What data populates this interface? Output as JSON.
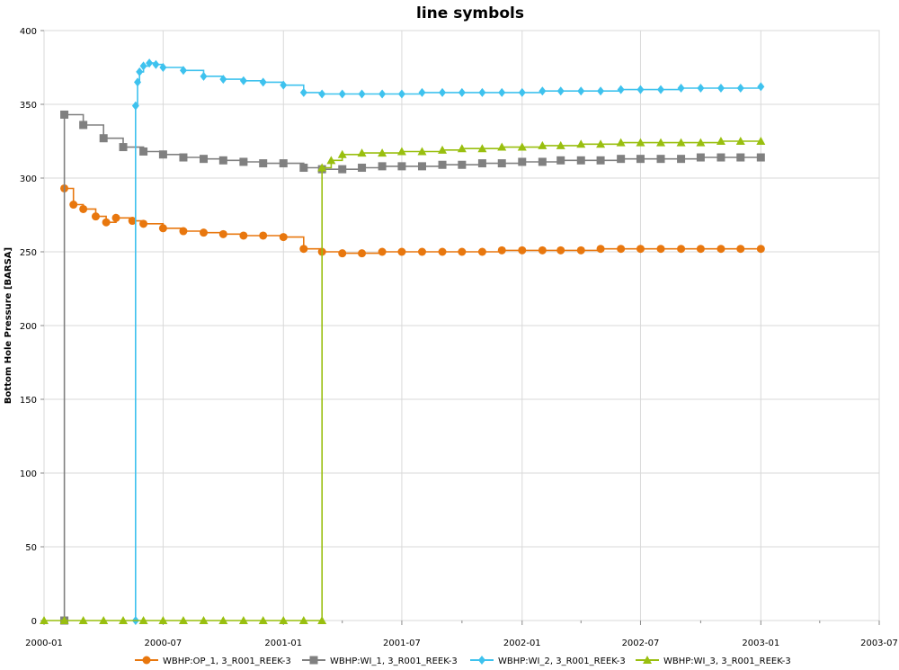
{
  "chart_data": {
    "type": "line",
    "title": "line symbols",
    "xlabel": "",
    "ylabel": "Bottom Hole Pressure [BARSA]",
    "ylim": [
      0,
      400
    ],
    "yticks": [
      0,
      50,
      100,
      150,
      200,
      250,
      300,
      350,
      400
    ],
    "xlim": [
      "2000-01-01",
      "2003-07-01"
    ],
    "xticks": [
      "2000-01",
      "2000-07",
      "2001-01",
      "2001-07",
      "2002-01",
      "2002-07",
      "2003-01",
      "2003-07"
    ],
    "grid": true,
    "legend_position": "bottom",
    "series": [
      {
        "name": "WBHP:OP_1, 3_R001_REEK-3",
        "color": "#e8770e",
        "marker": "circle",
        "x": [
          "2000-02-01",
          "2000-02-15",
          "2000-03-01",
          "2000-03-20",
          "2000-04-05",
          "2000-04-20",
          "2000-05-15",
          "2000-06-01",
          "2000-07-01",
          "2000-08-01",
          "2000-09-01",
          "2000-10-01",
          "2000-11-01",
          "2000-12-01",
          "2001-01-01",
          "2001-02-01",
          "2001-03-01",
          "2001-04-01",
          "2001-05-01",
          "2001-06-01",
          "2001-07-01",
          "2001-08-01",
          "2001-09-01",
          "2001-10-01",
          "2001-11-01",
          "2001-12-01",
          "2002-01-01",
          "2002-02-01",
          "2002-03-01",
          "2002-04-01",
          "2002-05-01",
          "2002-06-01",
          "2002-07-01",
          "2002-08-01",
          "2002-09-01",
          "2002-10-01",
          "2002-11-01",
          "2002-12-01",
          "2003-01-01"
        ],
        "y": [
          293,
          282,
          279,
          274,
          270,
          273,
          271,
          269,
          266,
          264,
          263,
          262,
          261,
          261,
          260,
          252,
          250,
          249,
          249,
          250,
          250,
          250,
          250,
          250,
          250,
          251,
          251,
          251,
          251,
          251,
          252,
          252,
          252,
          252,
          252,
          252,
          252,
          252,
          252
        ]
      },
      {
        "name": "WBHP:WI_1, 3_R001_REEK-3",
        "color": "#808080",
        "marker": "square",
        "x": [
          "2000-02-01",
          "2000-02-01",
          "2000-03-01",
          "2000-04-01",
          "2000-05-01",
          "2000-06-01",
          "2000-07-01",
          "2000-08-01",
          "2000-09-01",
          "2000-10-01",
          "2000-11-01",
          "2000-12-01",
          "2001-01-01",
          "2001-02-01",
          "2001-03-01",
          "2001-04-01",
          "2001-05-01",
          "2001-06-01",
          "2001-07-01",
          "2001-08-01",
          "2001-09-01",
          "2001-10-01",
          "2001-11-01",
          "2001-12-01",
          "2002-01-01",
          "2002-02-01",
          "2002-03-01",
          "2002-04-01",
          "2002-05-01",
          "2002-06-01",
          "2002-07-01",
          "2002-08-01",
          "2002-09-01",
          "2002-10-01",
          "2002-11-01",
          "2002-12-01",
          "2003-01-01"
        ],
        "y": [
          0,
          343,
          336,
          327,
          321,
          318,
          316,
          314,
          313,
          312,
          311,
          310,
          310,
          307,
          306,
          306,
          307,
          308,
          308,
          308,
          309,
          309,
          310,
          310,
          311,
          311,
          312,
          312,
          312,
          313,
          313,
          313,
          313,
          314,
          314,
          314,
          314
        ]
      },
      {
        "name": "WBHP:WI_2, 3_R001_REEK-3",
        "color": "#3ec2ee",
        "marker": "diamond",
        "x": [
          "2000-05-20",
          "2000-05-20",
          "2000-05-23",
          "2000-05-26",
          "2000-06-01",
          "2000-06-10",
          "2000-06-20",
          "2000-07-01",
          "2000-08-01",
          "2000-09-01",
          "2000-10-01",
          "2000-11-01",
          "2000-12-01",
          "2001-01-01",
          "2001-02-01",
          "2001-03-01",
          "2001-04-01",
          "2001-05-01",
          "2001-06-01",
          "2001-07-01",
          "2001-08-01",
          "2001-09-01",
          "2001-10-01",
          "2001-11-01",
          "2001-12-01",
          "2002-01-01",
          "2002-02-01",
          "2002-03-01",
          "2002-04-01",
          "2002-05-01",
          "2002-06-01",
          "2002-07-01",
          "2002-08-01",
          "2002-09-01",
          "2002-10-01",
          "2002-11-01",
          "2002-12-01",
          "2003-01-01"
        ],
        "y": [
          0,
          349,
          365,
          372,
          376,
          378,
          377,
          375,
          373,
          369,
          367,
          366,
          365,
          363,
          358,
          357,
          357,
          357,
          357,
          357,
          358,
          358,
          358,
          358,
          358,
          358,
          359,
          359,
          359,
          359,
          360,
          360,
          360,
          361,
          361,
          361,
          361,
          362
        ]
      },
      {
        "name": "WBHP:WI_3, 3_R001_REEK-3",
        "color": "#99bf0f",
        "marker": "triangle",
        "x": [
          "2000-01-01",
          "2000-02-01",
          "2000-03-01",
          "2000-04-01",
          "2000-05-01",
          "2000-06-01",
          "2000-07-01",
          "2000-08-01",
          "2000-09-01",
          "2000-10-01",
          "2000-11-01",
          "2000-12-01",
          "2001-01-01",
          "2001-02-01",
          "2001-03-01",
          "2001-03-01",
          "2001-03-15",
          "2001-04-01",
          "2001-05-01",
          "2001-06-01",
          "2001-07-01",
          "2001-08-01",
          "2001-09-01",
          "2001-10-01",
          "2001-11-01",
          "2001-12-01",
          "2002-01-01",
          "2002-02-01",
          "2002-03-01",
          "2002-04-01",
          "2002-05-01",
          "2002-06-01",
          "2002-07-01",
          "2002-08-01",
          "2002-09-01",
          "2002-10-01",
          "2002-11-01",
          "2002-12-01",
          "2003-01-01"
        ],
        "y": [
          0,
          0,
          0,
          0,
          0,
          0,
          0,
          0,
          0,
          0,
          0,
          0,
          0,
          0,
          0,
          307,
          312,
          316,
          317,
          317,
          318,
          318,
          319,
          320,
          320,
          321,
          321,
          322,
          322,
          323,
          323,
          324,
          324,
          324,
          324,
          324,
          325,
          325,
          325
        ]
      }
    ]
  }
}
